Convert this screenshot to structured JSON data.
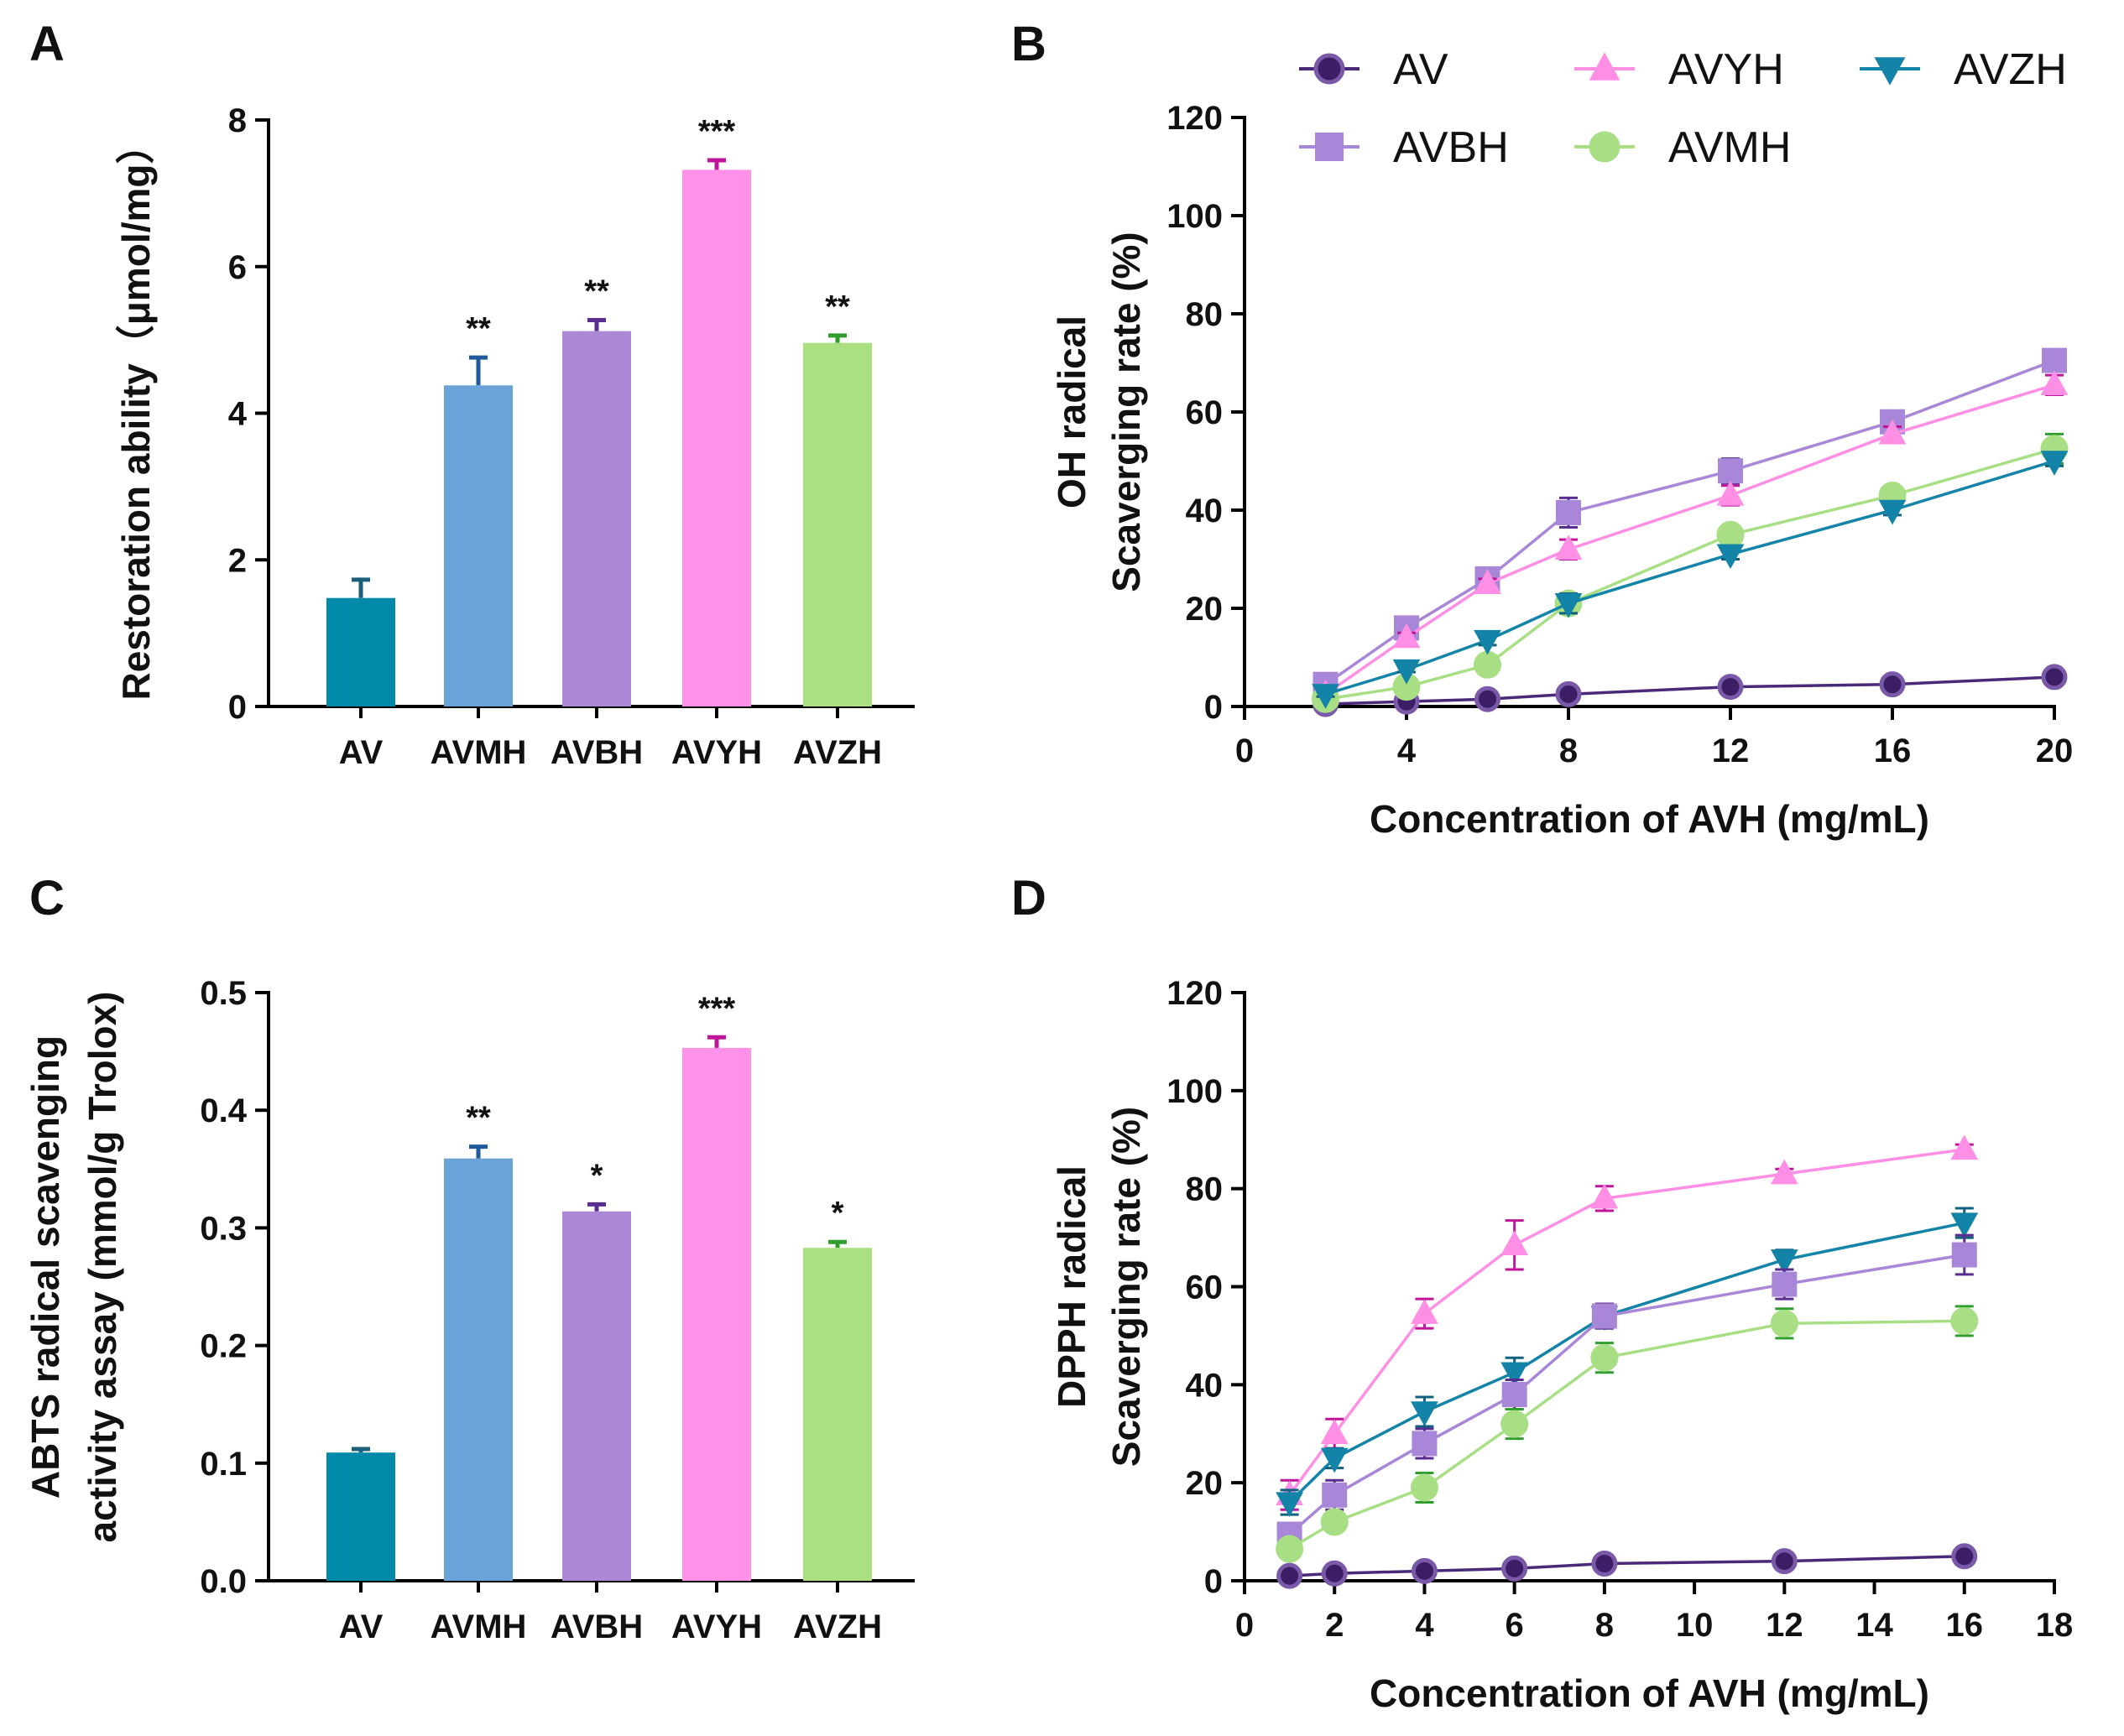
{
  "figure": {
    "panels": [
      "A",
      "B",
      "C",
      "D"
    ]
  },
  "colors": {
    "AV": "#0089a8",
    "AVMH": "#6aa3d8",
    "AVBH": "#ad88d6",
    "AVYH": "#ff92e8",
    "AVZH": "#aadf82",
    "AV_line": "#4a2a78",
    "AV_fill": "#3b1e66",
    "AVBH_line": "#a987d8",
    "AVYH_line": "#ff8ee5",
    "AVMH_line": "#a8df85",
    "AVZH_line": "#1384a8",
    "AVMH_err": "#1f5a9b",
    "AVBH_err": "#5a2d91",
    "AVYH_err": "#c0149a",
    "AVZH_err": "#2e9d2e"
  },
  "legend": {
    "items": [
      {
        "key": "AV",
        "label": "AV",
        "marker": "circle"
      },
      {
        "key": "AVYH",
        "label": "AVYH",
        "marker": "triangle-up"
      },
      {
        "key": "AVZH",
        "label": "AVZH",
        "marker": "triangle-down"
      },
      {
        "key": "AVBH",
        "label": "AVBH",
        "marker": "square"
      },
      {
        "key": "AVMH",
        "label": "AVMH",
        "marker": "circle"
      }
    ]
  },
  "chart_data": [
    {
      "panel": "A",
      "type": "bar",
      "categories": [
        "AV",
        "AVMH",
        "AVBH",
        "AVYH",
        "AVZH"
      ],
      "values": [
        1.48,
        4.38,
        5.12,
        7.32,
        4.96
      ],
      "errors": [
        0.25,
        0.38,
        0.15,
        0.13,
        0.1
      ],
      "significance": [
        "",
        "**",
        "**",
        "***",
        "**"
      ],
      "ylabel": "Restoration ability（μmol/mg）",
      "ylim": [
        0,
        8
      ],
      "yticks": [
        "0",
        "2",
        "4",
        "6",
        "8"
      ],
      "ytick_values": [
        0,
        2,
        4,
        6,
        8
      ]
    },
    {
      "panel": "B",
      "type": "line",
      "xlabel": "Concentration of AVH (mg/mL)",
      "ylabel_line1": "OH radical",
      "ylabel_line2": "Scaverging rate (%)",
      "xlim": [
        0,
        20
      ],
      "ylim": [
        0,
        120
      ],
      "xticks": [
        "0",
        "4",
        "8",
        "12",
        "16",
        "20"
      ],
      "xtick_values": [
        0,
        4,
        8,
        12,
        16,
        20
      ],
      "yticks": [
        "0",
        "20",
        "40",
        "60",
        "80",
        "100",
        "120"
      ],
      "ytick_values": [
        0,
        20,
        40,
        60,
        80,
        100,
        120
      ],
      "series": [
        {
          "name": "AV",
          "x": [
            2,
            4,
            6,
            8,
            12,
            16,
            20
          ],
          "y": [
            0.5,
            1.0,
            1.5,
            2.5,
            4.0,
            4.5,
            6.0
          ],
          "err": [
            0.3,
            0.3,
            0.3,
            0.4,
            0.5,
            0.5,
            0.5
          ]
        },
        {
          "name": "AVBH",
          "x": [
            2,
            4,
            6,
            8,
            12,
            16,
            20
          ],
          "y": [
            4.5,
            16.0,
            26.0,
            39.5,
            48.0,
            58.0,
            70.5
          ],
          "err": [
            1.5,
            1.0,
            1.0,
            3.0,
            2.5,
            1.5,
            2.0
          ]
        },
        {
          "name": "AVYH",
          "x": [
            2,
            4,
            6,
            8,
            12,
            16,
            20
          ],
          "y": [
            2.5,
            14.0,
            25.0,
            32.0,
            43.0,
            55.5,
            65.5
          ],
          "err": [
            1.0,
            1.0,
            1.0,
            2.0,
            2.0,
            1.5,
            2.0
          ]
        },
        {
          "name": "AVMH",
          "x": [
            2,
            4,
            6,
            8,
            12,
            16,
            20
          ],
          "y": [
            1.5,
            4.0,
            8.5,
            21.0,
            35.0,
            43.0,
            52.5
          ],
          "err": [
            0.5,
            0.5,
            0.5,
            2.0,
            1.5,
            1.5,
            3.0
          ]
        },
        {
          "name": "AVZH",
          "x": [
            2,
            4,
            6,
            8,
            12,
            16,
            20
          ],
          "y": [
            2.5,
            7.5,
            13.5,
            21.0,
            31.0,
            40.0,
            50.0
          ],
          "err": [
            0.5,
            0.5,
            1.0,
            2.0,
            1.0,
            1.0,
            1.0
          ]
        }
      ]
    },
    {
      "panel": "C",
      "type": "bar",
      "categories": [
        "AV",
        "AVMH",
        "AVBH",
        "AVYH",
        "AVZH"
      ],
      "values": [
        0.109,
        0.359,
        0.314,
        0.453,
        0.283
      ],
      "errors": [
        0.003,
        0.01,
        0.006,
        0.009,
        0.005
      ],
      "significance": [
        "",
        "**",
        "*",
        "***",
        "*"
      ],
      "ylabel_line1": "ABTS radical scavenging",
      "ylabel_line2": "activity assay (mmol/g Trolox)",
      "ylim": [
        0,
        0.5
      ],
      "yticks": [
        "0.0",
        "0.1",
        "0.2",
        "0.3",
        "0.4",
        "0.5"
      ],
      "ytick_values": [
        0,
        0.1,
        0.2,
        0.3,
        0.4,
        0.5
      ]
    },
    {
      "panel": "D",
      "type": "line",
      "xlabel": "Concentration of AVH (mg/mL)",
      "ylabel_line1": "DPPH radical",
      "ylabel_line2": "Scaverging rate (%)",
      "xlim": [
        0,
        18
      ],
      "ylim": [
        0,
        120
      ],
      "xticks": [
        "0",
        "2",
        "4",
        "6",
        "8",
        "10",
        "12",
        "14",
        "16",
        "18"
      ],
      "xtick_values": [
        0,
        2,
        4,
        6,
        8,
        10,
        12,
        14,
        16,
        18
      ],
      "yticks": [
        "0",
        "20",
        "40",
        "60",
        "80",
        "100",
        "120"
      ],
      "ytick_values": [
        0,
        20,
        40,
        60,
        80,
        100,
        120
      ],
      "series": [
        {
          "name": "AV",
          "x": [
            1,
            2,
            4,
            6,
            8,
            12,
            16
          ],
          "y": [
            1.0,
            1.5,
            2.0,
            2.5,
            3.5,
            4.0,
            5.0
          ],
          "err": [
            0.3,
            0.3,
            0.3,
            0.4,
            0.5,
            0.5,
            0.5
          ]
        },
        {
          "name": "AVYH",
          "x": [
            1,
            2,
            4,
            6,
            8,
            12,
            16
          ],
          "y": [
            17.5,
            30.0,
            54.5,
            68.5,
            78.0,
            83.0,
            88.0
          ],
          "err": [
            3.0,
            3.0,
            3.0,
            5.0,
            2.5,
            1.0,
            1.0
          ]
        },
        {
          "name": "AVZH",
          "x": [
            1,
            2,
            4,
            6,
            8,
            12,
            16
          ],
          "y": [
            16.0,
            25.0,
            34.5,
            42.5,
            54.0,
            65.5,
            73.0
          ],
          "err": [
            2.5,
            2.0,
            3.0,
            3.0,
            2.5,
            2.0,
            3.0
          ]
        },
        {
          "name": "AVBH",
          "x": [
            1,
            2,
            4,
            6,
            8,
            12,
            16
          ],
          "y": [
            9.5,
            17.5,
            28.0,
            38.0,
            54.0,
            60.5,
            66.5
          ],
          "err": [
            2.0,
            3.0,
            3.0,
            3.0,
            2.5,
            3.0,
            4.0
          ]
        },
        {
          "name": "AVMH",
          "x": [
            1,
            2,
            4,
            6,
            8,
            12,
            16
          ],
          "y": [
            6.5,
            12.0,
            19.0,
            32.0,
            45.5,
            52.5,
            53.0
          ],
          "err": [
            1.0,
            1.0,
            3.0,
            3.0,
            3.0,
            3.0,
            3.0
          ]
        }
      ]
    }
  ]
}
